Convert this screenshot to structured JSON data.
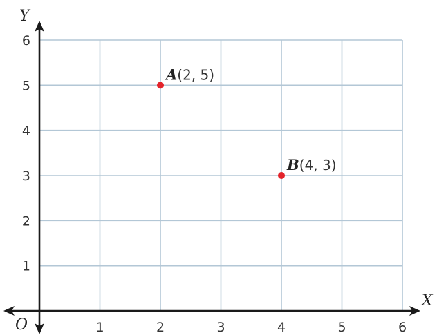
{
  "chart_data": {
    "type": "scatter",
    "title": "",
    "xlabel": "X",
    "ylabel": "Y",
    "origin_label": "O",
    "xlim": [
      0,
      6
    ],
    "ylim": [
      0,
      6
    ],
    "x_ticks": [
      "1",
      "2",
      "3",
      "4",
      "5",
      "6"
    ],
    "y_ticks": [
      "1",
      "2",
      "3",
      "4",
      "5",
      "6"
    ],
    "grid": true,
    "point_color": "#e3242b",
    "grid_color": "#b3c7d6",
    "axis_color": "#1a1a1a",
    "points": [
      {
        "letter": "A",
        "coords": "(2, 5)",
        "x": 2,
        "y": 5
      },
      {
        "letter": "B",
        "coords": "(4, 3)",
        "x": 4,
        "y": 3
      }
    ]
  }
}
